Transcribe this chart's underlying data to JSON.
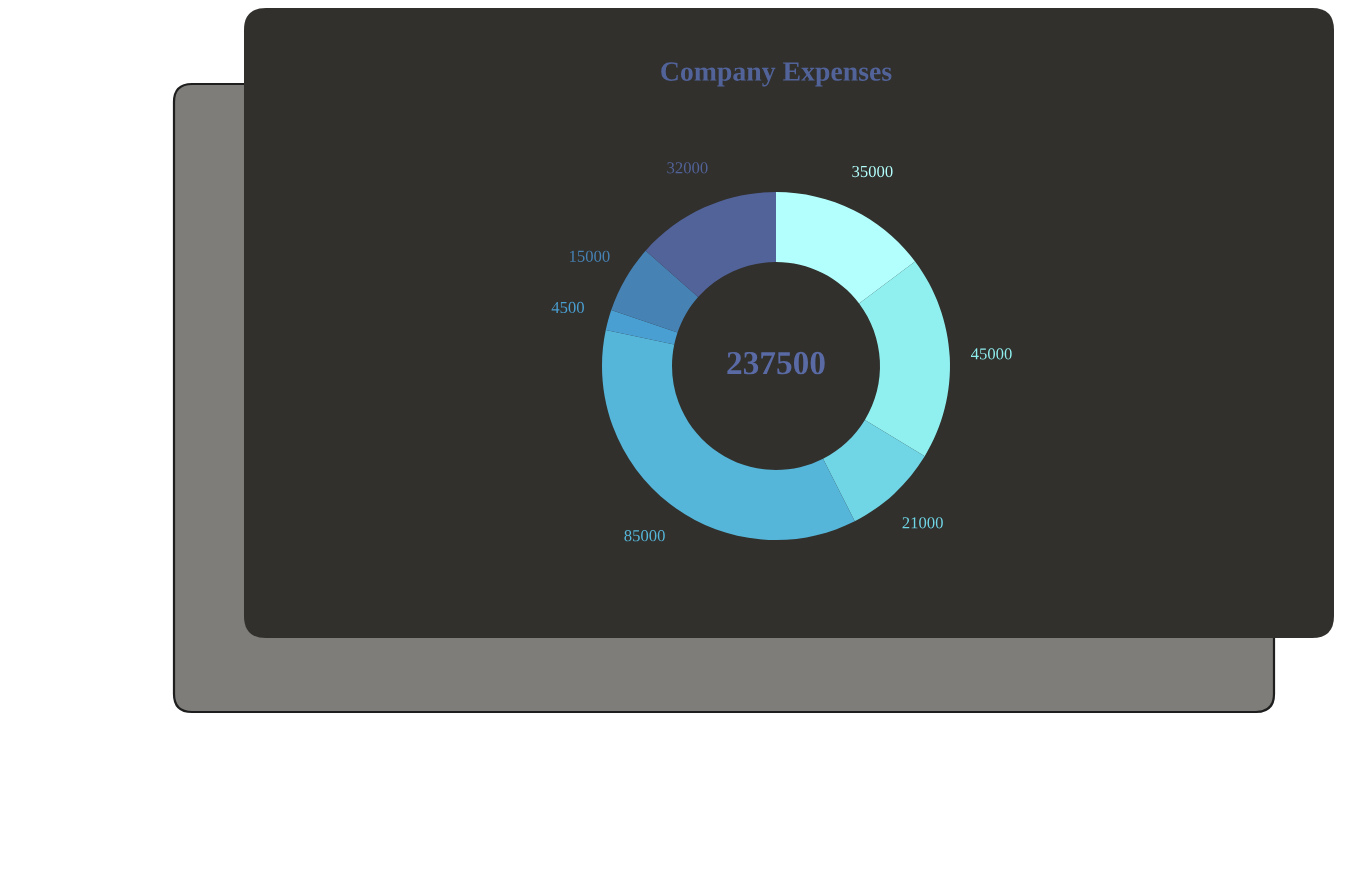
{
  "chart_data": {
    "type": "donut",
    "title": "Company Expenses",
    "categories": [
      null,
      null,
      null,
      null,
      null,
      null,
      null
    ],
    "values": [
      35000,
      45000,
      21000,
      85000,
      4500,
      15000,
      32000
    ],
    "colors": [
      "#b3fffd",
      "#90f0f0",
      "#70d6e6",
      "#56b6da",
      "#4a9fd2",
      "#4682b4",
      "#52639a"
    ],
    "data_labels": true,
    "annotations": [
      "237500"
    ]
  }
}
